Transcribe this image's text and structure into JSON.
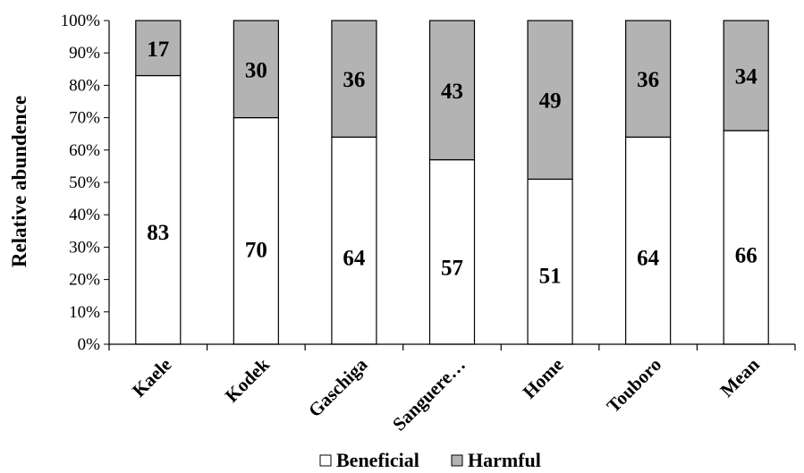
{
  "chart_data": {
    "type": "bar",
    "stacked": true,
    "percent": true,
    "categories": [
      "Kaele",
      "Kodek",
      "Gaschiga",
      "Sanguere…",
      "Home",
      "Touboro",
      "Mean"
    ],
    "series": [
      {
        "name": "Beneficial",
        "values": [
          83,
          70,
          64,
          57,
          51,
          64,
          66
        ],
        "color": "#ffffff"
      },
      {
        "name": "Harmful",
        "values": [
          17,
          30,
          36,
          43,
          49,
          36,
          34
        ],
        "color": "#b3b3b3"
      }
    ],
    "ylabel": "Relative abundence",
    "xlabel": "",
    "ylim": [
      0,
      100
    ],
    "yticks": [
      "0%",
      "10%",
      "20%",
      "30%",
      "40%",
      "50%",
      "60%",
      "70%",
      "80%",
      "90%",
      "100%"
    ],
    "grid": false,
    "legend": "bottom"
  }
}
